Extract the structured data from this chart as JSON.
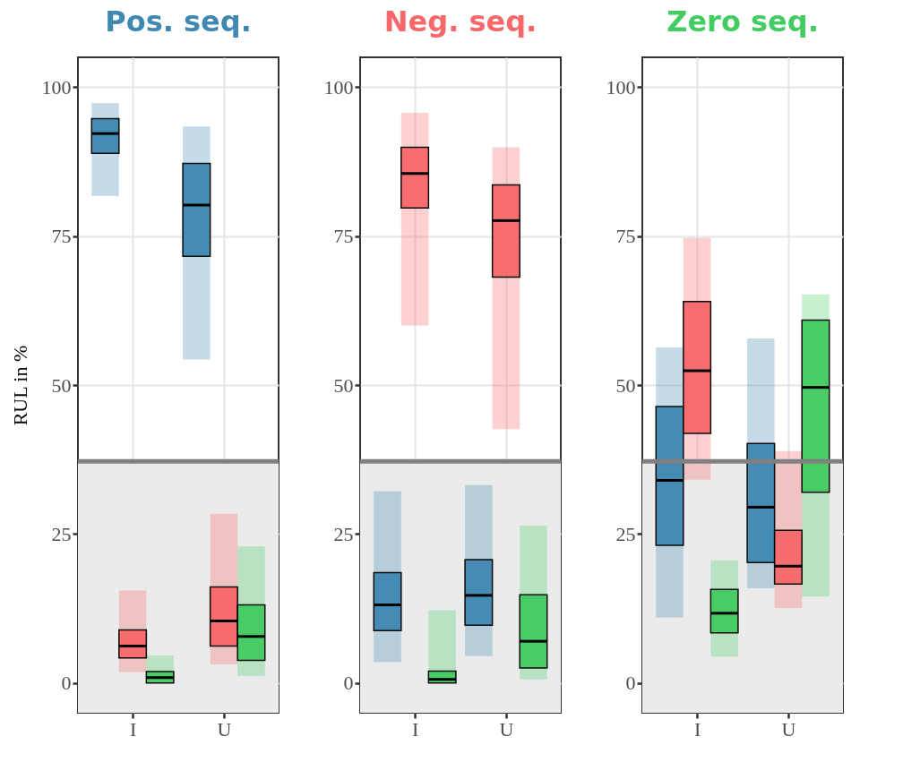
{
  "chart_data": [
    {
      "type": "box",
      "title": "Pos. seq.",
      "ylabel": "RUL in %",
      "categories": [
        "I",
        "U"
      ],
      "ylim": [
        -5,
        105
      ],
      "yticks": [
        0,
        25,
        50,
        75,
        100
      ],
      "grid": true,
      "legend": false,
      "ref_lines": [
        {
          "axis": "y",
          "value": 37.2,
          "color": "#808080"
        }
      ],
      "bands": [
        {
          "axis": "y",
          "from": -5,
          "to": 37.2,
          "color": "#ebebeb"
        }
      ],
      "series": [
        {
          "color": "#3f88b2",
          "boxes": [
            {
              "low": 81.7,
              "q1": 88.9,
              "median": 92.2,
              "q3": 94.7,
              "high": 97.3
            },
            {
              "low": 54.3,
              "q1": 71.6,
              "median": 80.2,
              "q3": 87.2,
              "high": 93.4
            }
          ]
        },
        {
          "color": "#f8686b",
          "boxes": [
            {
              "low": 1.8,
              "q1": 4.2,
              "median": 6.2,
              "q3": 8.9,
              "high": 15.5
            },
            {
              "low": 3.1,
              "q1": 6.2,
              "median": 10.4,
              "q3": 16.1,
              "high": 28.4
            }
          ]
        },
        {
          "color": "#43cc62",
          "boxes": [
            {
              "low": 0,
              "q1": 0,
              "median": 0.9,
              "q3": 1.9,
              "high": 4.6
            },
            {
              "low": 1.2,
              "q1": 3.8,
              "median": 7.8,
              "q3": 13.1,
              "high": 22.9
            }
          ]
        }
      ]
    },
    {
      "type": "box",
      "title": "Neg. seq.",
      "categories": [
        "I",
        "U"
      ],
      "ylim": [
        -5,
        105
      ],
      "yticks": [
        0,
        25,
        50,
        75,
        100
      ],
      "grid": true,
      "legend": false,
      "ref_lines": [
        {
          "axis": "y",
          "value": 37.2,
          "color": "#808080"
        }
      ],
      "bands": [
        {
          "axis": "y",
          "from": -5,
          "to": 37.2,
          "color": "#ebebeb"
        }
      ],
      "series": [
        {
          "color": "#3f88b2",
          "boxes": [
            {
              "low": 3.5,
              "q1": 8.8,
              "median": 13.1,
              "q3": 18.5,
              "high": 32.2
            },
            {
              "low": 4.5,
              "q1": 9.7,
              "median": 14.7,
              "q3": 20.7,
              "high": 33.2
            }
          ]
        },
        {
          "color": "#f8686b",
          "boxes": [
            {
              "low": 60.0,
              "q1": 79.7,
              "median": 85.5,
              "q3": 89.9,
              "high": 95.7
            },
            {
              "low": 42.6,
              "q1": 68.1,
              "median": 77.6,
              "q3": 83.6,
              "high": 89.9
            }
          ]
        },
        {
          "color": "#43cc62",
          "boxes": [
            {
              "low": 0,
              "q1": 0,
              "median": 0.6,
              "q3": 2.0,
              "high": 12.2
            },
            {
              "low": 0.6,
              "q1": 2.5,
              "median": 7.0,
              "q3": 14.8,
              "high": 26.4
            }
          ]
        }
      ]
    },
    {
      "type": "box",
      "title": "Zero seq.",
      "categories": [
        "I",
        "U"
      ],
      "ylim": [
        -5,
        105
      ],
      "yticks": [
        0,
        25,
        50,
        75,
        100
      ],
      "grid": true,
      "legend": false,
      "ref_lines": [
        {
          "axis": "y",
          "value": 37.2,
          "color": "#808080"
        }
      ],
      "bands": [
        {
          "axis": "y",
          "from": -5,
          "to": 37.2,
          "color": "#ebebeb"
        }
      ],
      "series": [
        {
          "color": "#3f88b2",
          "boxes": [
            {
              "low": 11.0,
              "q1": 23.1,
              "median": 34.0,
              "q3": 46.4,
              "high": 56.3
            },
            {
              "low": 15.9,
              "q1": 20.2,
              "median": 29.5,
              "q3": 40.2,
              "high": 57.8
            }
          ]
        },
        {
          "color": "#f8686b",
          "boxes": [
            {
              "low": 34.1,
              "q1": 41.9,
              "median": 52.4,
              "q3": 64.0,
              "high": 74.7
            },
            {
              "low": 12.6,
              "q1": 16.6,
              "median": 19.6,
              "q3": 25.6,
              "high": 38.9
            }
          ]
        },
        {
          "color": "#43cc62",
          "boxes": [
            {
              "low": 4.4,
              "q1": 8.4,
              "median": 11.7,
              "q3": 15.7,
              "high": 20.6
            },
            {
              "low": 14.5,
              "q1": 32.0,
              "median": 49.6,
              "q3": 60.9,
              "high": 65.2
            }
          ]
        }
      ]
    }
  ]
}
